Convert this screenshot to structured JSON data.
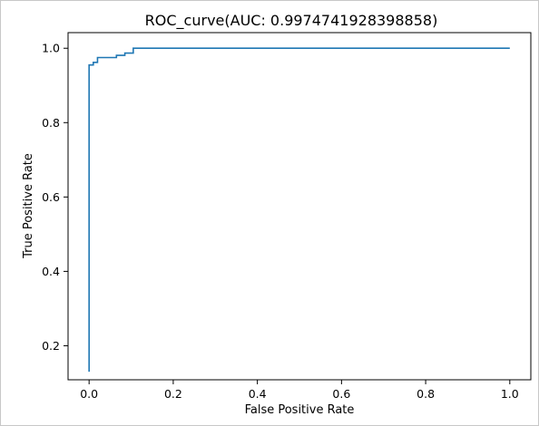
{
  "chart_data": {
    "type": "line",
    "title": "ROC_curve(AUC: 0.9974741928398858)",
    "xlabel": "False Positive Rate",
    "ylabel": "True Positive Rate",
    "xlim": [
      -0.05,
      1.05
    ],
    "ylim": [
      0.1085,
      1.042
    ],
    "grid": false,
    "xticks": [
      0.0,
      0.2,
      0.4,
      0.6,
      0.8,
      1.0
    ],
    "xtick_labels": [
      "0.0",
      "0.2",
      "0.4",
      "0.6",
      "0.8",
      "1.0"
    ],
    "yticks": [
      0.2,
      0.4,
      0.6,
      0.8,
      1.0
    ],
    "ytick_labels": [
      "0.2",
      "0.4",
      "0.6",
      "0.8",
      "1.0"
    ],
    "series": [
      {
        "color": "#1f77b4",
        "x": [
          0.0,
          0.0,
          0.01,
          0.01,
          0.02,
          0.02,
          0.065,
          0.065,
          0.085,
          0.085,
          0.105,
          0.105,
          1.0
        ],
        "y": [
          0.13,
          0.955,
          0.955,
          0.962,
          0.962,
          0.975,
          0.975,
          0.981,
          0.981,
          0.987,
          0.987,
          1.0,
          1.0
        ]
      }
    ]
  }
}
